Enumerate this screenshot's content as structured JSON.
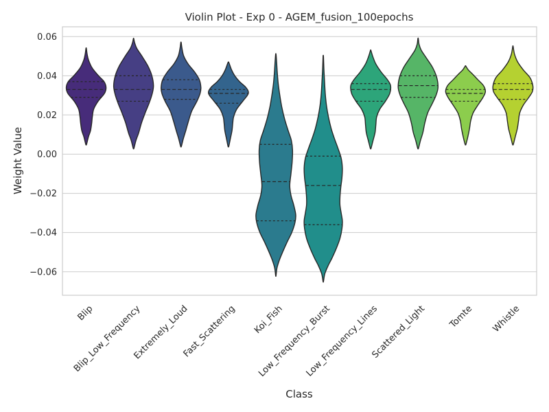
{
  "chart_data": {
    "type": "violin",
    "title": "Violin Plot - Exp 0 - AGEM_fusion_100epochs",
    "xlabel": "Class",
    "ylabel": "Weight Value",
    "ylim": [
      -0.072,
      0.065
    ],
    "yticks": [
      -0.06,
      -0.04,
      -0.02,
      0.0,
      0.02,
      0.04,
      0.06
    ],
    "ytick_labels": [
      "−0.06",
      "−0.04",
      "−0.02",
      "0.00",
      "0.02",
      "0.04",
      "0.06"
    ],
    "grid": true,
    "inner": "quartile",
    "categories": [
      "Blip",
      "Blip_Low_Frequency",
      "Extremely_Loud",
      "Fast_Scattering",
      "Koi_Fish",
      "Low_Frequency_Burst",
      "Low_Frequency_Lines",
      "Scattered_Light",
      "Tomte",
      "Whistle"
    ],
    "colors": [
      "#472c7a",
      "#463f84",
      "#3b5a8c",
      "#33648d",
      "#2b7b8e",
      "#218e8b",
      "#2da57a",
      "#56b567",
      "#8ccd4d",
      "#b5d131"
    ],
    "violins": [
      {
        "min": 0.005,
        "max": 0.054,
        "q1": 0.029,
        "median": 0.033,
        "q3": 0.037,
        "profile": [
          [
            0.005,
            0.02
          ],
          [
            0.009,
            0.12
          ],
          [
            0.012,
            0.22
          ],
          [
            0.016,
            0.28
          ],
          [
            0.019,
            0.31
          ],
          [
            0.023,
            0.38
          ],
          [
            0.027,
            0.6
          ],
          [
            0.031,
            0.92
          ],
          [
            0.034,
            1.0
          ],
          [
            0.037,
            0.9
          ],
          [
            0.04,
            0.62
          ],
          [
            0.044,
            0.3
          ],
          [
            0.048,
            0.12
          ],
          [
            0.051,
            0.05
          ],
          [
            0.054,
            0.01
          ]
        ]
      },
      {
        "min": 0.003,
        "max": 0.059,
        "q1": 0.027,
        "median": 0.033,
        "q3": 0.04,
        "profile": [
          [
            0.003,
            0.02
          ],
          [
            0.007,
            0.12
          ],
          [
            0.011,
            0.26
          ],
          [
            0.016,
            0.4
          ],
          [
            0.021,
            0.58
          ],
          [
            0.026,
            0.78
          ],
          [
            0.031,
            0.94
          ],
          [
            0.035,
            1.0
          ],
          [
            0.04,
            0.92
          ],
          [
            0.045,
            0.72
          ],
          [
            0.05,
            0.42
          ],
          [
            0.054,
            0.16
          ],
          [
            0.057,
            0.05
          ],
          [
            0.059,
            0.01
          ]
        ]
      },
      {
        "min": 0.004,
        "max": 0.057,
        "q1": 0.028,
        "median": 0.033,
        "q3": 0.038,
        "profile": [
          [
            0.004,
            0.02
          ],
          [
            0.008,
            0.12
          ],
          [
            0.012,
            0.24
          ],
          [
            0.017,
            0.38
          ],
          [
            0.022,
            0.54
          ],
          [
            0.027,
            0.8
          ],
          [
            0.031,
            0.96
          ],
          [
            0.034,
            1.0
          ],
          [
            0.038,
            0.92
          ],
          [
            0.042,
            0.68
          ],
          [
            0.046,
            0.36
          ],
          [
            0.05,
            0.14
          ],
          [
            0.054,
            0.05
          ],
          [
            0.057,
            0.01
          ]
        ]
      },
      {
        "min": 0.004,
        "max": 0.047,
        "q1": 0.026,
        "median": 0.031,
        "q3": 0.033,
        "profile": [
          [
            0.004,
            0.02
          ],
          [
            0.008,
            0.1
          ],
          [
            0.012,
            0.18
          ],
          [
            0.016,
            0.22
          ],
          [
            0.019,
            0.26
          ],
          [
            0.023,
            0.42
          ],
          [
            0.027,
            0.72
          ],
          [
            0.031,
            1.0
          ],
          [
            0.034,
            0.88
          ],
          [
            0.037,
            0.56
          ],
          [
            0.04,
            0.32
          ],
          [
            0.043,
            0.16
          ],
          [
            0.046,
            0.05
          ],
          [
            0.047,
            0.01
          ]
        ]
      },
      {
        "min": -0.062,
        "max": 0.051,
        "q1": -0.034,
        "median": -0.014,
        "q3": 0.005,
        "profile": [
          [
            -0.062,
            0.01
          ],
          [
            -0.058,
            0.06
          ],
          [
            -0.054,
            0.18
          ],
          [
            -0.05,
            0.34
          ],
          [
            -0.045,
            0.56
          ],
          [
            -0.04,
            0.8
          ],
          [
            -0.035,
            0.96
          ],
          [
            -0.031,
            1.0
          ],
          [
            -0.026,
            0.9
          ],
          [
            -0.021,
            0.76
          ],
          [
            -0.016,
            0.7
          ],
          [
            -0.01,
            0.76
          ],
          [
            -0.004,
            0.82
          ],
          [
            0.002,
            0.84
          ],
          [
            0.007,
            0.78
          ],
          [
            0.012,
            0.62
          ],
          [
            0.018,
            0.44
          ],
          [
            0.024,
            0.3
          ],
          [
            0.03,
            0.2
          ],
          [
            0.036,
            0.12
          ],
          [
            0.042,
            0.07
          ],
          [
            0.047,
            0.04
          ],
          [
            0.051,
            0.01
          ]
        ]
      },
      {
        "min": -0.065,
        "max": 0.05,
        "q1": -0.036,
        "median": -0.016,
        "q3": -0.001,
        "profile": [
          [
            -0.065,
            0.01
          ],
          [
            -0.061,
            0.08
          ],
          [
            -0.057,
            0.24
          ],
          [
            -0.053,
            0.44
          ],
          [
            -0.048,
            0.66
          ],
          [
            -0.043,
            0.84
          ],
          [
            -0.038,
            0.94
          ],
          [
            -0.034,
            0.96
          ],
          [
            -0.03,
            0.9
          ],
          [
            -0.026,
            0.84
          ],
          [
            -0.022,
            0.84
          ],
          [
            -0.017,
            0.88
          ],
          [
            -0.012,
            0.94
          ],
          [
            -0.007,
            0.96
          ],
          [
            -0.002,
            0.9
          ],
          [
            0.003,
            0.74
          ],
          [
            0.008,
            0.56
          ],
          [
            0.013,
            0.4
          ],
          [
            0.019,
            0.26
          ],
          [
            0.025,
            0.16
          ],
          [
            0.031,
            0.1
          ],
          [
            0.038,
            0.06
          ],
          [
            0.044,
            0.03
          ],
          [
            0.05,
            0.01
          ]
        ]
      },
      {
        "min": 0.003,
        "max": 0.053,
        "q1": 0.027,
        "median": 0.033,
        "q3": 0.036,
        "profile": [
          [
            0.003,
            0.02
          ],
          [
            0.007,
            0.12
          ],
          [
            0.011,
            0.22
          ],
          [
            0.015,
            0.26
          ],
          [
            0.019,
            0.3
          ],
          [
            0.023,
            0.46
          ],
          [
            0.027,
            0.74
          ],
          [
            0.031,
            0.96
          ],
          [
            0.035,
            1.0
          ],
          [
            0.038,
            0.84
          ],
          [
            0.042,
            0.52
          ],
          [
            0.046,
            0.26
          ],
          [
            0.05,
            0.1
          ],
          [
            0.053,
            0.01
          ]
        ]
      },
      {
        "min": 0.003,
        "max": 0.059,
        "q1": 0.029,
        "median": 0.035,
        "q3": 0.04,
        "profile": [
          [
            0.003,
            0.02
          ],
          [
            0.007,
            0.12
          ],
          [
            0.011,
            0.24
          ],
          [
            0.016,
            0.34
          ],
          [
            0.021,
            0.48
          ],
          [
            0.026,
            0.72
          ],
          [
            0.03,
            0.9
          ],
          [
            0.034,
            1.0
          ],
          [
            0.039,
            0.94
          ],
          [
            0.044,
            0.74
          ],
          [
            0.049,
            0.42
          ],
          [
            0.053,
            0.16
          ],
          [
            0.056,
            0.05
          ],
          [
            0.059,
            0.01
          ]
        ]
      },
      {
        "min": 0.005,
        "max": 0.045,
        "q1": 0.027,
        "median": 0.031,
        "q3": 0.033,
        "profile": [
          [
            0.005,
            0.02
          ],
          [
            0.009,
            0.12
          ],
          [
            0.013,
            0.2
          ],
          [
            0.017,
            0.26
          ],
          [
            0.021,
            0.38
          ],
          [
            0.025,
            0.62
          ],
          [
            0.029,
            0.88
          ],
          [
            0.032,
            1.0
          ],
          [
            0.035,
            0.9
          ],
          [
            0.038,
            0.62
          ],
          [
            0.041,
            0.34
          ],
          [
            0.043,
            0.14
          ],
          [
            0.045,
            0.01
          ]
        ]
      },
      {
        "min": 0.005,
        "max": 0.055,
        "q1": 0.028,
        "median": 0.033,
        "q3": 0.036,
        "profile": [
          [
            0.005,
            0.02
          ],
          [
            0.009,
            0.12
          ],
          [
            0.013,
            0.22
          ],
          [
            0.017,
            0.28
          ],
          [
            0.021,
            0.34
          ],
          [
            0.025,
            0.52
          ],
          [
            0.029,
            0.8
          ],
          [
            0.032,
            0.98
          ],
          [
            0.035,
            1.0
          ],
          [
            0.039,
            0.86
          ],
          [
            0.043,
            0.52
          ],
          [
            0.047,
            0.24
          ],
          [
            0.051,
            0.08
          ],
          [
            0.055,
            0.01
          ]
        ]
      }
    ]
  }
}
